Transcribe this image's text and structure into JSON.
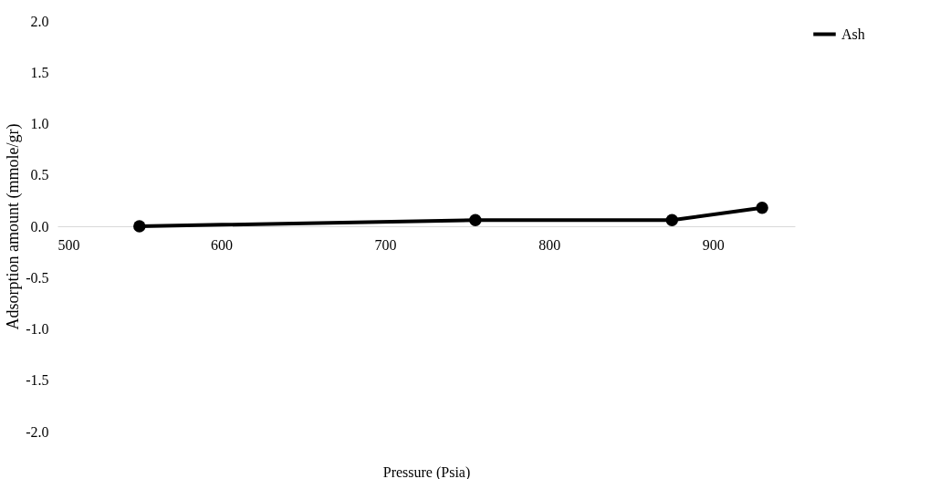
{
  "chart_data": {
    "type": "line",
    "xlabel": "Pressure (Psia)",
    "ylabel": "Adsorption amount (mmole/gr)",
    "x": [
      550,
      755,
      875,
      930
    ],
    "series": [
      {
        "name": "Ash",
        "color": "#000000",
        "values": [
          0.0,
          0.06,
          0.06,
          0.18
        ]
      }
    ],
    "xlim": [
      500,
      950
    ],
    "xticks": [
      500,
      600,
      700,
      800,
      900
    ],
    "ylim": [
      -2.0,
      2.0
    ],
    "yticks": [
      {
        "value": -2,
        "label": "-2.0"
      },
      {
        "value": -1.5,
        "label": "-1.5"
      },
      {
        "value": -1,
        "label": "-1.0"
      },
      {
        "value": -0.5,
        "label": "-0.5"
      },
      {
        "value": 0,
        "label": "0.0"
      },
      {
        "value": 0.5,
        "label": "0.5"
      },
      {
        "value": 1,
        "label": "1.0"
      },
      {
        "value": 1.5,
        "label": "1.5"
      },
      {
        "value": 2,
        "label": "2.0"
      }
    ],
    "marker": "circle",
    "line_style": "solid",
    "grid": false,
    "legend": "right"
  }
}
